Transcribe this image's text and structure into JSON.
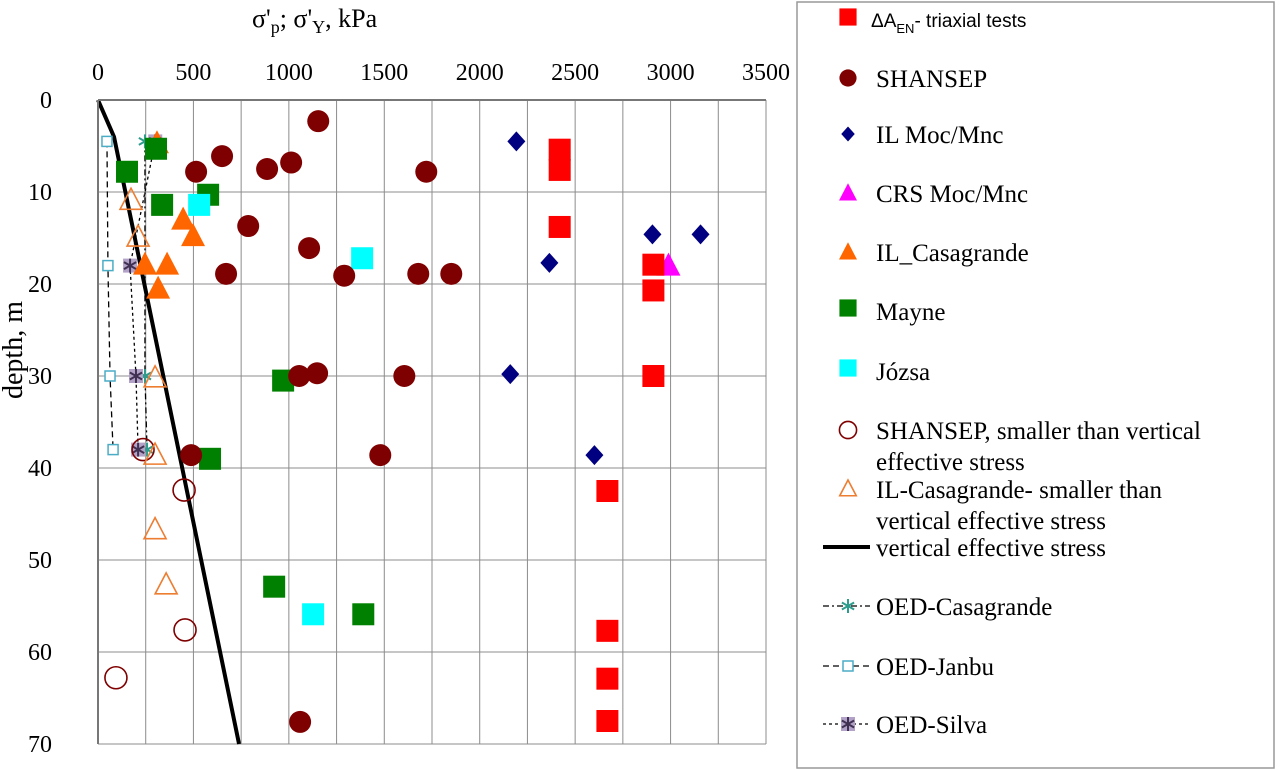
{
  "chart_data": {
    "type": "scatter",
    "title_parts": {
      "s1": "σ'",
      "sub1": "p",
      "mid": "; σ'",
      "sub2": "Y",
      "end": ", kPa"
    },
    "xlabel": "σ'p; σ'Y, kPa",
    "ylabel": "depth, m",
    "xlim": [
      0,
      3500
    ],
    "ylim": [
      0,
      70
    ],
    "y_inverted": true,
    "x_axis_position": "top",
    "x_ticks": [
      "0",
      "500",
      "1000",
      "1500",
      "2000",
      "2500",
      "3000",
      "3500"
    ],
    "y_ticks": [
      "0",
      "10",
      "20",
      "30",
      "40",
      "50",
      "60",
      "70"
    ],
    "grid": true,
    "legend_placement": "right",
    "series": [
      {
        "name": "ΔA_EN- triaxial tests",
        "label_main": "ΔA",
        "label_sub": "EN",
        "label_rest": "- triaxial tests",
        "marker": "square",
        "color": "#ff0000",
        "points": [
          [
            2419,
            5.4
          ],
          [
            2419,
            7.6
          ],
          [
            2419,
            13.8
          ],
          [
            2910,
            17.9
          ],
          [
            2910,
            20.7
          ],
          [
            2910,
            30.0
          ],
          [
            2669,
            42.5
          ],
          [
            2669,
            57.7
          ],
          [
            2669,
            62.9
          ],
          [
            2669,
            67.5
          ]
        ]
      },
      {
        "name": "SHANSEP",
        "marker": "circle",
        "color": "#7f0000",
        "points": [
          [
            1154,
            2.3
          ],
          [
            650,
            6.1
          ],
          [
            514,
            7.8
          ],
          [
            886,
            7.5
          ],
          [
            1012,
            6.8
          ],
          [
            1720,
            7.8
          ],
          [
            787,
            13.7
          ],
          [
            1106,
            16.1
          ],
          [
            671,
            18.9
          ],
          [
            1290,
            19.1
          ],
          [
            1678,
            18.9
          ],
          [
            1851,
            18.9
          ],
          [
            1054,
            30.0
          ],
          [
            1148,
            29.7
          ],
          [
            1605,
            30.0
          ],
          [
            488,
            38.6
          ],
          [
            1479,
            38.6
          ],
          [
            1059,
            67.6
          ]
        ]
      },
      {
        "name": "IL Moc/Mnc",
        "marker": "diamond",
        "color": "#000080",
        "points": [
          [
            2192,
            4.5
          ],
          [
            2905,
            14.6
          ],
          [
            3157,
            14.6
          ],
          [
            2365,
            17.7
          ],
          [
            2160,
            29.8
          ],
          [
            2601,
            38.6
          ]
        ]
      },
      {
        "name": "CRS Moc/Mnc",
        "marker": "triangle",
        "color": "#ff00ff",
        "points": [
          [
            2989,
            18.0
          ]
        ]
      },
      {
        "name": "IL_Casagrande",
        "marker": "triangle",
        "color": "#ff6600",
        "points": [
          [
            309,
            4.7
          ],
          [
            446,
            13.0
          ],
          [
            498,
            14.8
          ],
          [
            246,
            17.9
          ],
          [
            362,
            17.9
          ],
          [
            315,
            20.5
          ]
        ]
      },
      {
        "name": "Mayne",
        "marker": "square",
        "color": "#008000",
        "points": [
          [
            152,
            7.8
          ],
          [
            304,
            5.3
          ],
          [
            577,
            10.3
          ],
          [
            336,
            11.4
          ],
          [
            970,
            30.5
          ],
          [
            587,
            39.0
          ],
          [
            923,
            52.9
          ],
          [
            1390,
            55.9
          ]
        ]
      },
      {
        "name": "Józsa",
        "marker": "square",
        "color": "#00ffff",
        "points": [
          [
            530,
            11.4
          ],
          [
            1384,
            17.2
          ],
          [
            1127,
            55.9
          ]
        ]
      },
      {
        "name": "SHANSEP, smaller than vertical effective stress",
        "label_line1": "SHANSEP, smaller than vertical",
        "label_line2": "effective stress",
        "marker": "open-circle",
        "color": "#7f0000",
        "points": [
          [
            236,
            38.0
          ],
          [
            451,
            42.4
          ],
          [
            456,
            57.6
          ],
          [
            94,
            62.8
          ]
        ]
      },
      {
        "name": "IL-Casagrande- smaller than vertical effective stress",
        "label_line1": "IL-Casagrande- smaller than",
        "label_line2": "vertical effective stress",
        "marker": "open-triangle",
        "color": "#ed7d31",
        "points": [
          [
            173,
            10.9
          ],
          [
            210,
            14.9
          ],
          [
            299,
            30.2
          ],
          [
            299,
            38.6
          ],
          [
            299,
            46.7
          ],
          [
            357,
            52.7
          ]
        ]
      },
      {
        "name": "vertical effective stress",
        "marker": "line",
        "color": "#000000",
        "points": [
          [
            0,
            0
          ],
          [
            84,
            4
          ],
          [
            739,
            70
          ]
        ]
      },
      {
        "name": "OED-Casagrande",
        "marker": "star",
        "color": "#2e9c8c",
        "dash": "6 3 2 3",
        "points": [
          [
            246,
            4.5
          ],
          [
            246,
            30.0
          ],
          [
            257,
            38.0
          ]
        ]
      },
      {
        "name": "OED-Janbu",
        "marker": "small-square",
        "color": "#4bacc6",
        "dash": "6 4",
        "points": [
          [
            47,
            4.5
          ],
          [
            52,
            18.0
          ],
          [
            63,
            30.0
          ],
          [
            79,
            38.0
          ]
        ]
      },
      {
        "name": "OED-Silva",
        "marker": "asterisk",
        "color": "#403152",
        "dash": "3 3",
        "points": [
          [
            300,
            4.5
          ],
          [
            168,
            18.0
          ],
          [
            199,
            30.0
          ],
          [
            210,
            38.0
          ]
        ]
      }
    ]
  }
}
